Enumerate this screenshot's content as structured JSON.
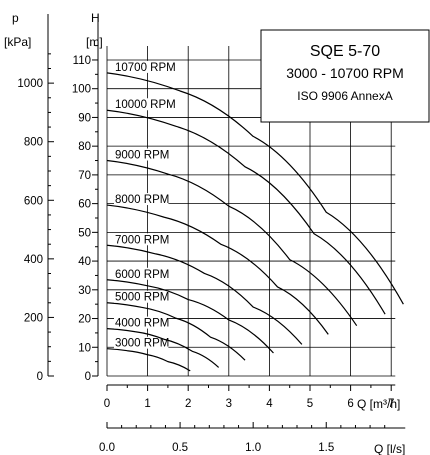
{
  "chart_data": {
    "type": "line",
    "title": "SQE 5-70",
    "subtitle": "3000 - 10700 RPM",
    "standard": "ISO 9906 AnnexA",
    "xlabel": "Q [m³/h]",
    "x2label": "Q [l/s]",
    "ylabel_H_symbol": "H",
    "ylabel_H_unit": "[m]",
    "ylabel_p_symbol": "p",
    "ylabel_p_unit": "[kPa]",
    "xlim": [
      0,
      7.1
    ],
    "ylim": [
      0,
      115
    ],
    "x_ticks": [
      "0",
      "1",
      "2",
      "3",
      "4",
      "5",
      "6",
      "7"
    ],
    "x2_ticks": [
      "0.0",
      "0.5",
      "1.0",
      "1.5"
    ],
    "y_ticks": [
      "0",
      "10",
      "20",
      "30",
      "40",
      "50",
      "60",
      "70",
      "80",
      "90",
      "100",
      "110"
    ],
    "p_ticks": [
      "0",
      "200",
      "400",
      "600",
      "800",
      "1000"
    ],
    "colors": {
      "grid": "#000000",
      "curve": "#000000",
      "background": "#ffffff"
    },
    "series": [
      {
        "name": "3000 RPM",
        "x": [
          0,
          0.5,
          1.0,
          1.5,
          2.05
        ],
        "y": [
          9.5,
          8.8,
          7.4,
          5.0,
          1.8
        ]
      },
      {
        "name": "4000 RPM",
        "x": [
          0,
          0.7,
          1.4,
          2.1,
          2.75
        ],
        "y": [
          16.5,
          15.4,
          12.8,
          8.6,
          3.0
        ]
      },
      {
        "name": "5000 RPM",
        "x": [
          0,
          0.85,
          1.7,
          2.55,
          3.4
        ],
        "y": [
          25.5,
          23.9,
          20.1,
          13.5,
          5.5
        ]
      },
      {
        "name": "6000 RPM",
        "x": [
          0,
          1.0,
          2.0,
          3.0,
          4.1
        ],
        "y": [
          33.5,
          31.4,
          26.6,
          19.5,
          8.0
        ]
      },
      {
        "name": "7000 RPM",
        "x": [
          0,
          1.2,
          2.4,
          3.6,
          4.8
        ],
        "y": [
          45.5,
          42.5,
          35.7,
          24.0,
          11.0
        ]
      },
      {
        "name": "8000 RPM",
        "x": [
          0,
          1.4,
          2.8,
          4.2,
          5.45
        ],
        "y": [
          59.5,
          55.3,
          45.9,
          31.0,
          14.5
        ]
      },
      {
        "name": "9000 RPM",
        "x": [
          0,
          1.5,
          3.0,
          4.5,
          6.15
        ],
        "y": [
          75.0,
          70.3,
          59.1,
          40.5,
          17.5
        ]
      },
      {
        "name": "10000 RPM",
        "x": [
          0,
          1.7,
          3.4,
          5.1,
          6.85
        ],
        "y": [
          92.5,
          86.9,
          72.8,
          49.5,
          21.5
        ]
      },
      {
        "name": "10700 RPM",
        "x": [
          0,
          1.8,
          3.6,
          5.4,
          7.3
        ],
        "y": [
          105.5,
          99.2,
          83.4,
          57.0,
          25.0
        ]
      }
    ]
  }
}
